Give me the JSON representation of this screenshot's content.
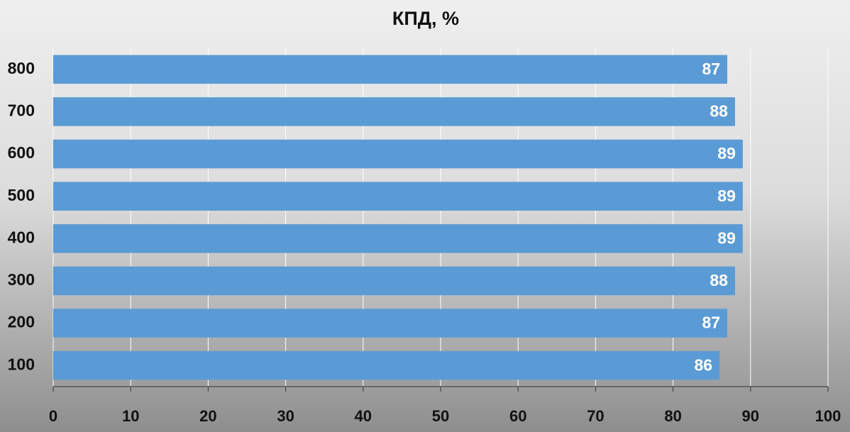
{
  "chart_data": {
    "type": "bar",
    "orientation": "horizontal",
    "title": "КПД, %",
    "categories": [
      "100",
      "200",
      "300",
      "400",
      "500",
      "600",
      "700",
      "800"
    ],
    "values": [
      86,
      87,
      88,
      89,
      89,
      89,
      88,
      87
    ],
    "color": "#5b9bd5",
    "xlim": [
      0,
      100
    ],
    "xticks": [
      0,
      10,
      20,
      30,
      40,
      50,
      60,
      70,
      80,
      90,
      100
    ],
    "grid": true
  }
}
